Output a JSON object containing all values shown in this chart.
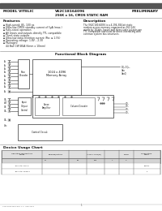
{
  "page_bg": "#ffffff",
  "header_bar_color": "#555555",
  "title_left": "MODEL VITELIC",
  "title_center": "V62C18164096",
  "title_subtitle": "256K x 16, CMOS STATIC RAM",
  "title_right": "PRELIMINARY",
  "features_title": "Features",
  "features": [
    "High-speed: 85, 100 ns",
    "Ultra-low CMOS standby current of 5μA (max.)",
    "Fully-static operation",
    "All inputs and outputs directly TTL compatible",
    "Three state outputs",
    "Ultra-low data-retention current (Pᴅᴄ ≤ 1.5V)",
    "Operating voltage: 1.8V – 2.3V",
    "Packages:",
    "  44 Ball CSP-BGA (6mm x 10mm)"
  ],
  "desc_title": "Description",
  "desc_lines": [
    "The V62C18164096 is a 4,194,304-bit static",
    "random-access memory organized as 262,144",
    "words by 16 bits. Inputs and three-state outputs are",
    "TTL compatible and allow for direct interfacing with",
    "common system bus structures."
  ],
  "diagram_title": "Functional Block Diagram",
  "table_title": "Device Usage Chart",
  "footer_left": "V62C18164096 REV 1.0  June 2008",
  "footer_center": "1"
}
